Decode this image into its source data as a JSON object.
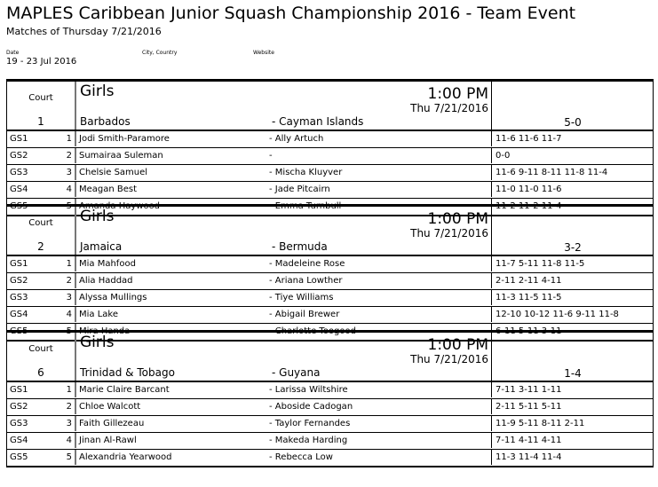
{
  "title": "MAPLES Caribbean Junior Squash Championship 2016 - Team Event",
  "subtitle": "Matches of Thursday 7/21/2016",
  "info": {
    "date_label": "Date",
    "city_label": "City, Country",
    "website_label": "Website",
    "date_value": "19 - 23 Jul 2016"
  },
  "court_label": "Court",
  "matches": [
    {
      "court": "1",
      "division": "Girls",
      "time": "1:00 PM",
      "date": "Thu 7/21/2016",
      "home": "Barbados",
      "away": "- Cayman Islands",
      "score": "5-0",
      "rows": [
        {
          "code": "GS1",
          "num": "1",
          "player": "Jodi Smith-Paramore",
          "opponent": "- Ally Artuch",
          "result": "11-6 11-6 11-7"
        },
        {
          "code": "GS2",
          "num": "2",
          "player": "Sumairaa Suleman",
          "opponent": "-",
          "result": "0-0"
        },
        {
          "code": "GS3",
          "num": "3",
          "player": "Chelsie Samuel",
          "opponent": "- Mischa Kluyver",
          "result": "11-6 9-11 8-11 11-8 11-4"
        },
        {
          "code": "GS4",
          "num": "4",
          "player": "Meagan Best",
          "opponent": "- Jade Pitcairn",
          "result": "11-0 11-0 11-6"
        },
        {
          "code": "GS5",
          "num": "5",
          "player": "Amanda Haywood",
          "opponent": "- Emma Turnbull",
          "result": "11-2 11-2 11-4"
        }
      ]
    },
    {
      "court": "2",
      "division": "Girls",
      "time": "1:00 PM",
      "date": "Thu 7/21/2016",
      "home": "Jamaica",
      "away": "- Bermuda",
      "score": "3-2",
      "rows": [
        {
          "code": "GS1",
          "num": "1",
          "player": "Mia Mahfood",
          "opponent": "- Madeleine Rose",
          "result": "11-7 5-11 11-8 11-5"
        },
        {
          "code": "GS2",
          "num": "2",
          "player": "Alia Haddad",
          "opponent": "- Ariana Lowther",
          "result": "2-11 2-11 4-11"
        },
        {
          "code": "GS3",
          "num": "3",
          "player": "Alyssa Mullings",
          "opponent": "- Tiye Williams",
          "result": "11-3 11-5 11-5"
        },
        {
          "code": "GS4",
          "num": "4",
          "player": "Mia Lake",
          "opponent": "- Abigail Brewer",
          "result": "12-10 10-12 11-6 9-11 11-8"
        },
        {
          "code": "GS5",
          "num": "5",
          "player": "Mira Handa",
          "opponent": "- Charlotte Toogood",
          "result": "6-11 5-11 3-11"
        }
      ]
    },
    {
      "court": "6",
      "division": "Girls",
      "time": "1:00 PM",
      "date": "Thu 7/21/2016",
      "home": "Trinidad & Tobago",
      "away": "- Guyana",
      "score": "1-4",
      "rows": [
        {
          "code": "GS1",
          "num": "1",
          "player": "Marie Claire Barcant",
          "opponent": "- Larissa Wiltshire",
          "result": "7-11 3-11 1-11"
        },
        {
          "code": "GS2",
          "num": "2",
          "player": "Chloe Walcott",
          "opponent": "- Aboside Cadogan",
          "result": "2-11 5-11 5-11"
        },
        {
          "code": "GS3",
          "num": "3",
          "player": "Faith Gillezeau",
          "opponent": "- Taylor Fernandes",
          "result": "11-9 5-11 8-11 2-11"
        },
        {
          "code": "GS4",
          "num": "4",
          "player": "Jinan Al-Rawl",
          "opponent": "- Makeda Harding",
          "result": "7-11 4-11 4-11"
        },
        {
          "code": "GS5",
          "num": "5",
          "player": "Alexandria Yearwood",
          "opponent": "- Rebecca Low",
          "result": "11-3 11-4 11-4"
        }
      ]
    }
  ]
}
